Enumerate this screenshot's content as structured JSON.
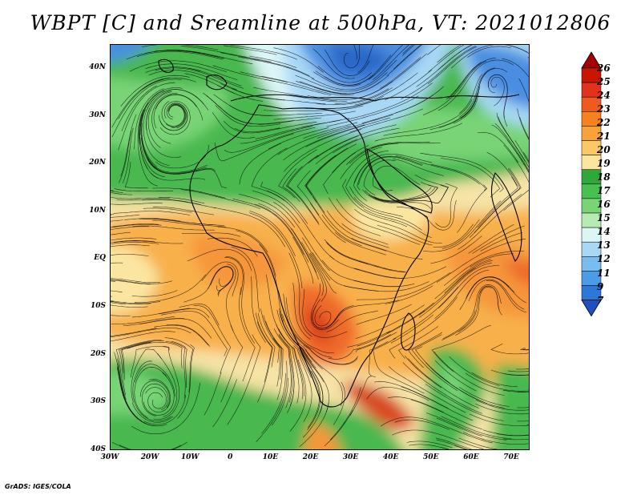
{
  "title": "WBPT [C] and Sreamline at 500hPa, VT: 2021012806",
  "credit": "GrADS: IGES/COLA",
  "map": {
    "lat_labels": [
      "40N",
      "30N",
      "20N",
      "10N",
      "EQ",
      "10S",
      "20S",
      "30S",
      "40S"
    ],
    "lon_labels": [
      "30W",
      "20W",
      "10W",
      "0",
      "10E",
      "20E",
      "30E",
      "40E",
      "50E",
      "60E",
      "70E"
    ]
  },
  "colorbar": {
    "labels": [
      "26",
      "25",
      "24",
      "23",
      "22",
      "21",
      "20",
      "19",
      "18",
      "17",
      "16",
      "15",
      "14",
      "13",
      "12",
      "11",
      "9",
      "7"
    ],
    "colors": [
      "#a50000",
      "#c81600",
      "#e1321e",
      "#ef5a1e",
      "#f5821e",
      "#f8a23c",
      "#fac864",
      "#fae6a0",
      "#2ea83a",
      "#48c050",
      "#78d474",
      "#b8eab4",
      "#dcf6f6",
      "#a8d8f5",
      "#78bcf0",
      "#4a9ce8",
      "#2c78d8",
      "#1e50c0"
    ]
  }
}
